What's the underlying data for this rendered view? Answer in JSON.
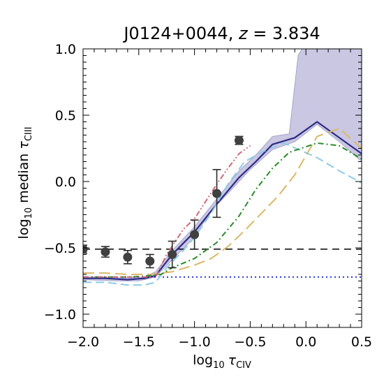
{
  "chart_data": {
    "type": "line",
    "title": {
      "prefix": "J0124+0044, ",
      "zvar": "z",
      "suffix": " = 3.834"
    },
    "xlabel": {
      "base": "log",
      "sub": "10",
      "sym": "τ",
      "ssub": "CIV"
    },
    "ylabel": {
      "base": "log",
      "sub": "10",
      "mid": " median ",
      "sym": "τ",
      "ssub": "CIII"
    },
    "xlim": [
      -2.0,
      0.5
    ],
    "ylim": [
      -1.1,
      1.0
    ],
    "xticks": [
      -2.0,
      -1.5,
      -1.0,
      -0.5,
      0.0,
      0.5
    ],
    "yticks": [
      -1.0,
      -0.5,
      0.0,
      0.5,
      1.0
    ],
    "xtick_labels": [
      "−2.0",
      "−1.5",
      "−1.0",
      "−0.5",
      "0.0",
      "0.5"
    ],
    "ytick_labels": [
      "−1.0",
      "−0.5",
      "0.0",
      "0.5",
      "1.0"
    ],
    "grid": false,
    "band": {
      "color": "#9d99c9",
      "upper": [
        [
          -2.0,
          -0.72
        ],
        [
          -1.8,
          -0.72
        ],
        [
          -1.6,
          -0.73
        ],
        [
          -1.45,
          -0.72
        ],
        [
          -1.35,
          -0.68
        ],
        [
          -1.2,
          -0.52
        ],
        [
          -1.0,
          -0.34
        ],
        [
          -0.8,
          -0.13
        ],
        [
          -0.6,
          0.08
        ],
        [
          -0.45,
          0.2
        ],
        [
          -0.3,
          0.34
        ],
        [
          -0.15,
          0.36
        ],
        [
          -0.07,
          0.95
        ],
        [
          0.0,
          1.05
        ],
        [
          0.5,
          1.05
        ]
      ],
      "lower": [
        [
          0.5,
          0.15
        ],
        [
          0.3,
          0.3
        ],
        [
          0.1,
          0.43
        ],
        [
          -0.1,
          0.3
        ],
        [
          -0.3,
          0.24
        ],
        [
          -0.5,
          0.09
        ],
        [
          -0.7,
          -0.09
        ],
        [
          -0.85,
          -0.22
        ],
        [
          -1.0,
          -0.42
        ],
        [
          -1.2,
          -0.59
        ],
        [
          -1.35,
          -0.72
        ],
        [
          -1.5,
          -0.75
        ],
        [
          -1.7,
          -0.75
        ],
        [
          -2.0,
          -0.74
        ]
      ]
    },
    "series": [
      {
        "style": "solid",
        "color": "#2d2a86",
        "x": [
          -2.0,
          -1.8,
          -1.6,
          -1.45,
          -1.35,
          -1.2,
          -1.0,
          -0.8,
          -0.6,
          -0.45,
          -0.3,
          -0.1,
          0.1,
          0.5
        ],
        "y": [
          -0.73,
          -0.73,
          -0.74,
          -0.73,
          -0.71,
          -0.55,
          -0.38,
          -0.17,
          0.03,
          0.15,
          0.28,
          0.33,
          0.45,
          0.21
        ]
      },
      {
        "style": "dashed-light",
        "color": "#8ecae6",
        "x": [
          -2.0,
          -1.8,
          -1.6,
          -1.45,
          -1.35,
          -1.25,
          -1.1,
          -1.0,
          -0.85,
          -0.7,
          -0.55,
          -0.4,
          -0.2,
          0.1,
          0.3,
          0.5
        ],
        "y": [
          -0.76,
          -0.76,
          -0.78,
          -0.78,
          -0.76,
          -0.65,
          -0.52,
          -0.42,
          -0.24,
          -0.02,
          0.15,
          0.22,
          0.29,
          0.18,
          0.08,
          -0.01
        ]
      },
      {
        "style": "dashed-long",
        "color": "#d9b866",
        "x": [
          -2.0,
          -1.8,
          -1.6,
          -1.4,
          -1.3,
          -1.2,
          -1.0,
          -0.85,
          -0.7,
          -0.55,
          -0.4,
          -0.25,
          -0.1,
          0.1,
          0.3,
          0.5
        ],
        "y": [
          -0.69,
          -0.69,
          -0.7,
          -0.7,
          -0.69,
          -0.68,
          -0.63,
          -0.58,
          -0.49,
          -0.37,
          -0.24,
          -0.11,
          0.05,
          0.34,
          0.4,
          0.25
        ]
      },
      {
        "style": "dashdot",
        "color": "#2a8a2a",
        "x": [
          -2.0,
          -1.8,
          -1.6,
          -1.4,
          -1.3,
          -1.2,
          -1.0,
          -0.8,
          -0.6,
          -0.45,
          -0.3,
          -0.15,
          0.1,
          0.3,
          0.5
        ],
        "y": [
          -0.72,
          -0.72,
          -0.72,
          -0.71,
          -0.7,
          -0.65,
          -0.58,
          -0.46,
          -0.26,
          -0.06,
          0.1,
          0.22,
          0.29,
          0.27,
          0.17
        ]
      },
      {
        "style": "dashdotdot",
        "color": "#cd6b7a",
        "x": [
          -2.0,
          -1.8,
          -1.6,
          -1.45,
          -1.35,
          -1.25,
          -1.1,
          -1.0,
          -0.9,
          -0.8,
          -0.7,
          -0.6,
          -0.5
        ],
        "y": [
          -0.72,
          -0.72,
          -0.72,
          -0.72,
          -0.72,
          -0.55,
          -0.36,
          -0.28,
          -0.15,
          -0.02,
          0.1,
          0.21,
          0.27
        ]
      }
    ],
    "points": {
      "color": "#404040",
      "x": [
        -2.0,
        -1.8,
        -1.6,
        -1.4,
        -1.2,
        -1.0,
        -0.8,
        -0.6
      ],
      "y": [
        -0.51,
        -0.53,
        -0.57,
        -0.6,
        -0.55,
        -0.4,
        -0.09,
        0.31
      ],
      "err": [
        0.03,
        0.04,
        0.05,
        0.05,
        0.1,
        0.11,
        0.18,
        0.03
      ]
    },
    "hlines": [
      {
        "y": -0.51,
        "style": "dashed",
        "color": "#000000"
      },
      {
        "y": -0.72,
        "style": "dotted",
        "color": "#1a2bd6"
      }
    ]
  }
}
